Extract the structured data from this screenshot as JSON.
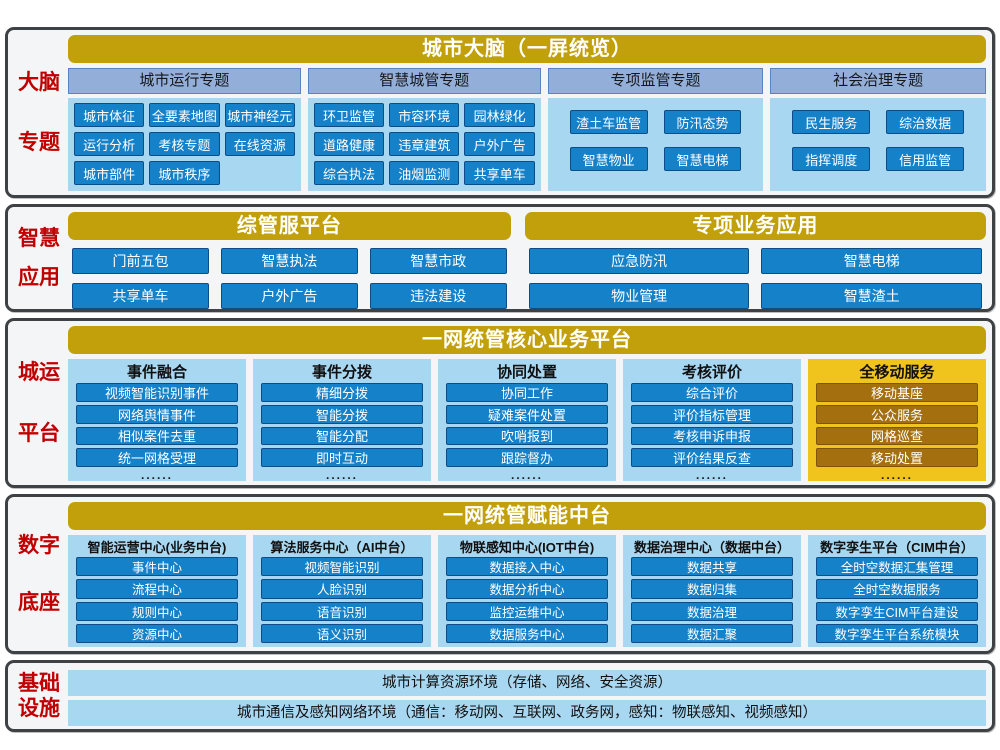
{
  "colors": {
    "gold": "#C2A00C",
    "steel_blue": "#93AFD9",
    "light_blue": "#A8D7F1",
    "blue": "#1581C9",
    "yellow": "#F0C31D",
    "brown": "#A4700F",
    "red": "#C00000",
    "frame": "#3F4245"
  },
  "sections": [
    {
      "id": "brain-topics",
      "type": "grid",
      "label_lines": [
        "大脑",
        "专题"
      ],
      "header": "城市大脑（一屏统览）",
      "columns": [
        {
          "title": "城市运行专题",
          "items": [
            "城市体征",
            "全要素地图",
            "城市神经元",
            "运行分析",
            "考核专题",
            "在线资源",
            "城市部件",
            "城市秩序"
          ]
        },
        {
          "title": "智慧城管专题",
          "items": [
            "环卫监管",
            "市容环境",
            "园林绿化",
            "道路健康",
            "违章建筑",
            "户外广告",
            "综合执法",
            "油烟监测",
            "共享单车"
          ]
        },
        {
          "title": "专项监管专题",
          "items": [
            "渣土车监管",
            "防汛态势",
            "智慧物业",
            "智慧电梯"
          ]
        },
        {
          "title": "社会治理专题",
          "items": [
            "民生服务",
            "综治数据",
            "指挥调度",
            "信用监管"
          ]
        }
      ]
    },
    {
      "id": "smart-apps",
      "type": "split",
      "label_lines": [
        "智慧",
        "应用"
      ],
      "groups": [
        {
          "header": "综管服平台",
          "items": [
            "门前五包",
            "智慧执法",
            "智慧市政",
            "共享单车",
            "户外广告",
            "违法建设"
          ]
        },
        {
          "header": "专项业务应用",
          "items": [
            "应急防汛",
            "智慧电梯",
            "物业管理",
            "智慧渣土"
          ]
        }
      ]
    },
    {
      "id": "core-platform",
      "type": "stack",
      "label_lines": [
        "城运",
        "平台"
      ],
      "header": "一网统管核心业务平台",
      "dots": "......",
      "columns": [
        {
          "title": "事件融合",
          "items": [
            "视频智能识别事件",
            "网络舆情事件",
            "相似案件去重",
            "统一网格受理"
          ]
        },
        {
          "title": "事件分拨",
          "items": [
            "精细分拨",
            "智能分拨",
            "智能分配",
            "即时互动"
          ]
        },
        {
          "title": "协同处置",
          "items": [
            "协同工作",
            "疑难案件处置",
            "吹哨报到",
            "跟踪督办"
          ]
        },
        {
          "title": "考核评价",
          "items": [
            "综合评价",
            "评价指标管理",
            "考核申诉申报",
            "评价结果反查"
          ]
        },
        {
          "title": "全移动服务",
          "highlight": true,
          "items": [
            "移动基座",
            "公众服务",
            "网格巡查",
            "移动处置"
          ]
        }
      ]
    },
    {
      "id": "digital-base",
      "type": "stack",
      "label_lines": [
        "数字",
        "底座"
      ],
      "header": "一网统管赋能中台",
      "columns": [
        {
          "title": "智能运营中心(业务中台)",
          "items": [
            "事件中心",
            "流程中心",
            "规则中心",
            "资源中心"
          ]
        },
        {
          "title": "算法服务中心（AI中台）",
          "items": [
            "视频智能识别",
            "人脸识别",
            "语音识别",
            "语义识别"
          ]
        },
        {
          "title": "物联感知中心(IOT中台)",
          "items": [
            "数据接入中心",
            "数据分析中心",
            "监控运维中心",
            "数据服务中心"
          ]
        },
        {
          "title": "数据治理中心（数据中台）",
          "items": [
            "数据共享",
            "数据归集",
            "数据治理",
            "数据汇聚"
          ]
        },
        {
          "title": "数字孪生平台（CIM中台）",
          "items": [
            "全时空数据汇集管理",
            "全时空数据服务",
            "数字孪生CIM平台建设",
            "数字孪生平台系统模块"
          ]
        }
      ]
    },
    {
      "id": "infrastructure",
      "type": "bars",
      "label_lines": [
        "基础",
        "设施"
      ],
      "bars": [
        "城市计算资源环境（存储、网络、安全资源）",
        "城市通信及感知网络环境（通信：移动网、互联网、政务网，感知：物联感知、视频感知）"
      ]
    }
  ]
}
